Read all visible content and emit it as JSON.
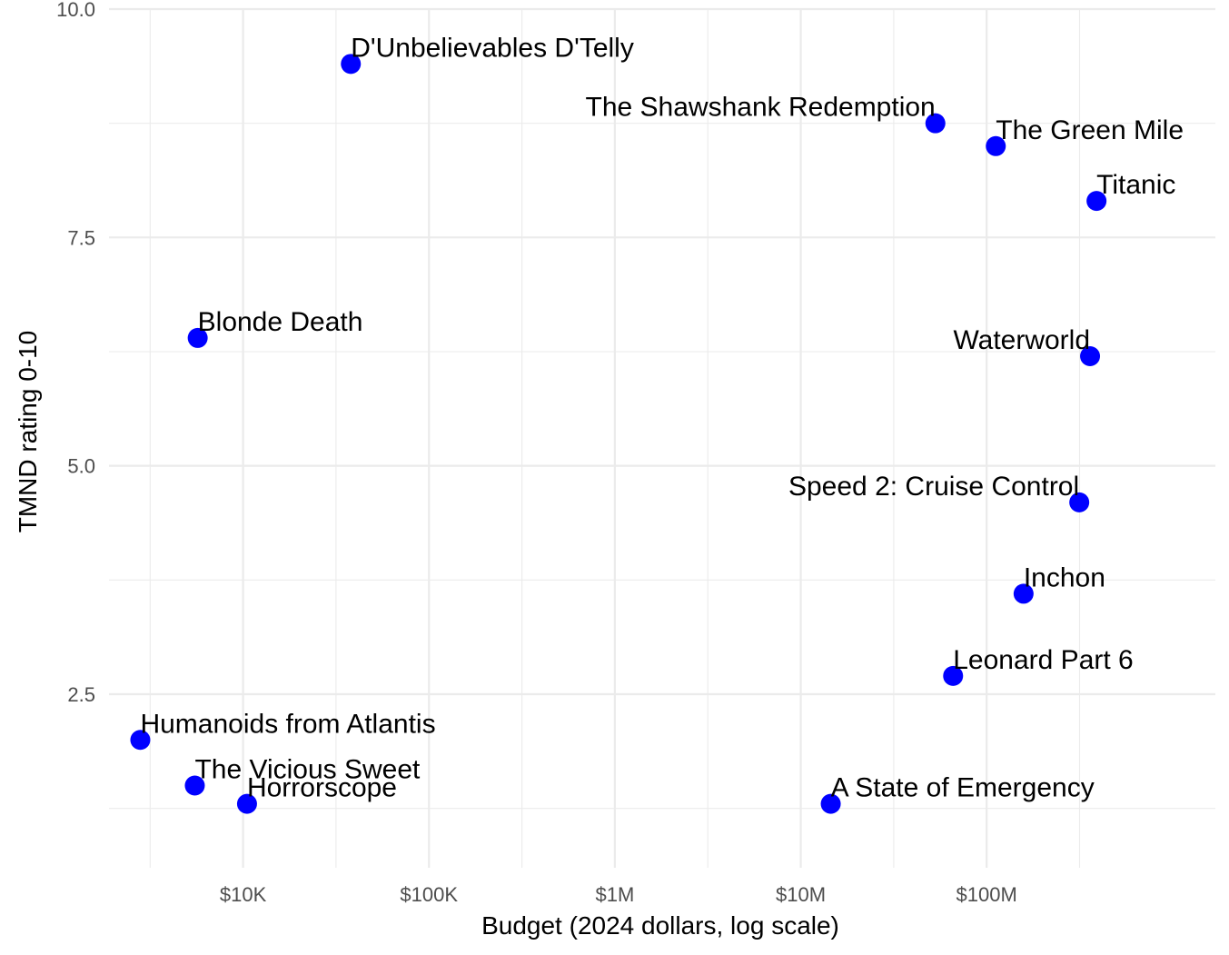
{
  "chart_data": {
    "type": "scatter",
    "xlabel": "Budget (2024 dollars, log scale)",
    "ylabel": "TMND rating 0-10",
    "x_scale": "log10",
    "xlim": [
      1900,
      1700000000
    ],
    "ylim": [
      0.6,
      10.0
    ],
    "x_ticks": [
      {
        "value": 10000,
        "label": "$10K"
      },
      {
        "value": 100000,
        "label": "$100K"
      },
      {
        "value": 1000000,
        "label": "$1M"
      },
      {
        "value": 10000000,
        "label": "$10M"
      },
      {
        "value": 100000000,
        "label": "$100M"
      }
    ],
    "y_ticks": [
      {
        "value": 2.5,
        "label": "2.5"
      },
      {
        "value": 5.0,
        "label": "5.0"
      },
      {
        "value": 7.5,
        "label": "7.5"
      },
      {
        "value": 10.0,
        "label": "10.0"
      }
    ],
    "point_color": "#0000ff",
    "grid": true,
    "points": [
      {
        "label": "D'Unbelievables D'Telly",
        "x": 38000,
        "y": 9.4
      },
      {
        "label": "The Shawshank Redemption",
        "x": 53000000,
        "y": 8.75
      },
      {
        "label": "The Green Mile",
        "x": 112000000,
        "y": 8.5
      },
      {
        "label": "Titanic",
        "x": 390000000,
        "y": 7.9
      },
      {
        "label": "Blonde Death",
        "x": 5700,
        "y": 6.4
      },
      {
        "label": "Waterworld",
        "x": 360000000,
        "y": 6.2
      },
      {
        "label": "Speed 2: Cruise Control",
        "x": 315000000,
        "y": 4.6
      },
      {
        "label": "Inchon",
        "x": 158000000,
        "y": 3.6
      },
      {
        "label": "Leonard Part 6",
        "x": 66000000,
        "y": 2.7
      },
      {
        "label": "Humanoids from Atlantis",
        "x": 2800,
        "y": 2.0
      },
      {
        "label": "The Vicious Sweet",
        "x": 5500,
        "y": 1.5
      },
      {
        "label": "Horrorscope",
        "x": 10500,
        "y": 1.3
      },
      {
        "label": "A State of Emergency",
        "x": 14500000,
        "y": 1.3
      }
    ]
  }
}
